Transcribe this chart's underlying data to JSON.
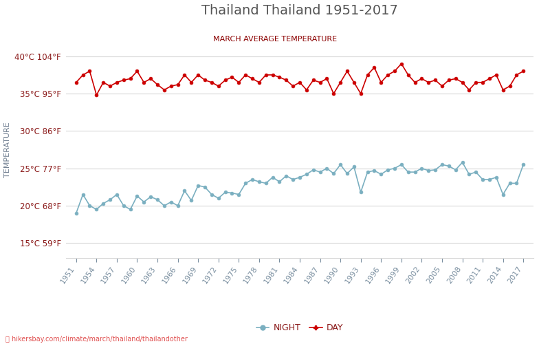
{
  "title": "Thailand Thailand 1951-2017",
  "subtitle": "MARCH AVERAGE TEMPERATURE",
  "xlabel": "",
  "ylabel": "TEMPERATURE",
  "ylabel_color": "#6b7a8d",
  "title_color": "#555555",
  "subtitle_color": "#8b0000",
  "background_color": "#ffffff",
  "grid_color": "#d8d8d8",
  "years": [
    1951,
    1952,
    1953,
    1954,
    1955,
    1956,
    1957,
    1958,
    1959,
    1960,
    1961,
    1962,
    1963,
    1964,
    1965,
    1966,
    1967,
    1968,
    1969,
    1970,
    1971,
    1972,
    1973,
    1974,
    1975,
    1976,
    1977,
    1978,
    1979,
    1980,
    1981,
    1982,
    1983,
    1984,
    1985,
    1986,
    1987,
    1988,
    1989,
    1990,
    1991,
    1992,
    1993,
    1994,
    1995,
    1996,
    1997,
    1998,
    1999,
    2000,
    2001,
    2002,
    2003,
    2004,
    2005,
    2006,
    2007,
    2008,
    2009,
    2010,
    2011,
    2012,
    2013,
    2014,
    2015,
    2016,
    2017
  ],
  "night_temps": [
    19.0,
    21.5,
    20.0,
    19.5,
    20.3,
    20.8,
    21.5,
    20.0,
    19.5,
    21.3,
    20.5,
    21.2,
    20.8,
    20.0,
    20.5,
    20.0,
    22.0,
    20.7,
    22.7,
    22.5,
    21.5,
    21.0,
    21.8,
    21.7,
    21.5,
    23.0,
    23.5,
    23.2,
    23.0,
    23.8,
    23.2,
    24.0,
    23.5,
    23.8,
    24.2,
    24.8,
    24.5,
    25.0,
    24.3,
    25.5,
    24.3,
    25.2,
    21.8,
    24.5,
    24.7,
    24.2,
    24.8,
    25.0,
    25.5,
    24.5,
    24.5,
    25.0,
    24.7,
    24.8,
    25.5,
    25.3,
    24.8,
    25.8,
    24.2,
    24.5,
    23.5,
    23.5,
    23.8,
    21.5,
    23.0,
    23.0,
    25.5
  ],
  "day_temps": [
    36.5,
    37.5,
    38.0,
    34.8,
    36.5,
    36.0,
    36.5,
    36.8,
    37.0,
    38.0,
    36.5,
    37.0,
    36.2,
    35.5,
    36.0,
    36.2,
    37.5,
    36.5,
    37.5,
    36.8,
    36.5,
    36.0,
    36.8,
    37.2,
    36.5,
    37.5,
    37.0,
    36.5,
    37.5,
    37.5,
    37.2,
    36.8,
    36.0,
    36.5,
    35.5,
    36.8,
    36.5,
    37.0,
    35.0,
    36.5,
    38.0,
    36.5,
    35.0,
    37.5,
    38.5,
    36.5,
    37.5,
    38.0,
    39.0,
    37.5,
    36.5,
    37.0,
    36.5,
    36.8,
    36.0,
    36.8,
    37.0,
    36.5,
    35.5,
    36.5,
    36.5,
    37.0,
    37.5,
    35.5,
    36.0,
    37.5,
    38.0
  ],
  "night_color": "#7aafc0",
  "day_color": "#cc0000",
  "tick_label_color": "#8b1a1a",
  "ytick_label_color": "#8b1a1a",
  "xtick_label_color": "#7a8fa0",
  "yticks_celsius": [
    15,
    20,
    25,
    30,
    35,
    40
  ],
  "yticks_fahrenheit": [
    59,
    68,
    77,
    86,
    95,
    104
  ],
  "ylim": [
    13,
    42
  ],
  "xlim": [
    1949.5,
    2018.5
  ],
  "xtick_years": [
    1951,
    1954,
    1957,
    1960,
    1963,
    1966,
    1969,
    1972,
    1975,
    1978,
    1981,
    1984,
    1987,
    1990,
    1993,
    1996,
    1999,
    2002,
    2005,
    2008,
    2011,
    2014,
    2017
  ],
  "watermark": "hikersbay.com/climate/march/thailand/thailandother",
  "legend_night": "NIGHT",
  "legend_day": "DAY",
  "night_marker": "o",
  "day_marker": "P",
  "marker_size": 3.5,
  "linewidth": 1.2,
  "title_fontsize": 14,
  "subtitle_fontsize": 8,
  "ylabel_fontsize": 8,
  "ytick_fontsize": 8.5,
  "xtick_fontsize": 8,
  "legend_fontsize": 9
}
